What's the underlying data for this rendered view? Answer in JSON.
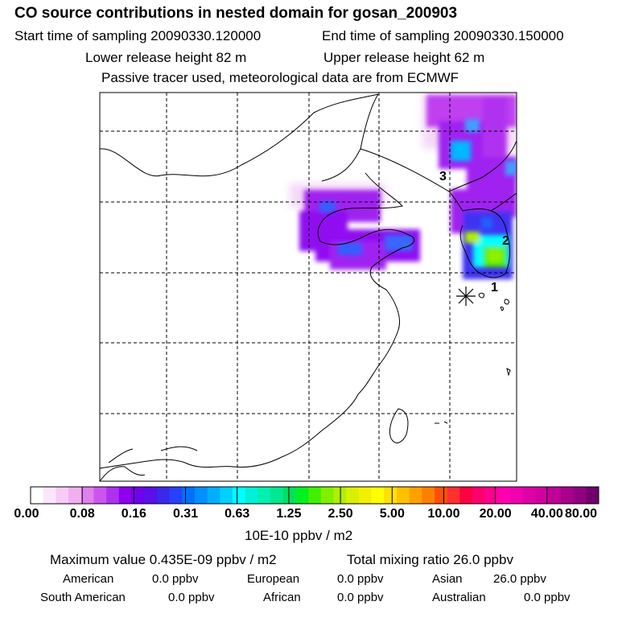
{
  "header": {
    "title": "CO  source contributions in nested domain for gosan_200903",
    "start_time": "Start time of sampling 20090330.120000",
    "end_time": "End time of sampling 20090330.150000",
    "lower_release": "Lower release height   82 m",
    "upper_release": "Upper release height   62 m",
    "tracer_note": "Passive tracer used, meteorological data are from ECMWF"
  },
  "map": {
    "site_labels": [
      "1",
      "2",
      "3"
    ]
  },
  "colorbar": {
    "ticks": [
      "0.00",
      "0.08",
      "0.16",
      "0.31",
      "0.63",
      "1.25",
      "2.50",
      "5.00",
      "10.00",
      "20.00",
      "40.00",
      "80.00"
    ],
    "colors": [
      "#ffffff",
      "#fbe6fb",
      "#f6ccf6",
      "#f0b0f0",
      "#e080f0",
      "#cc55f0",
      "#b030f0",
      "#9000ee",
      "#7000ee",
      "#5a10e8",
      "#3c28e8",
      "#2840ff",
      "#0070ff",
      "#0090ff",
      "#00b0ff",
      "#00d0ff",
      "#00ffff",
      "#00f0d8",
      "#00f0b0",
      "#00e890",
      "#00e060",
      "#00f020",
      "#40f000",
      "#80f000",
      "#b0f000",
      "#d8f000",
      "#f0f000",
      "#ffff00",
      "#ffe000",
      "#ffc000",
      "#ffa000",
      "#ff8000",
      "#ff5000",
      "#ff3030",
      "#ff0040",
      "#ff0070",
      "#ff0090",
      "#ff00b0",
      "#f000b0",
      "#e000a8",
      "#d000a0",
      "#c00098",
      "#a8008c",
      "#900080",
      "#700070"
    ],
    "unit": "10E-10 ppbv / m2"
  },
  "footer": {
    "maximum_value": "Maximum value  0.435E-09 ppbv / m2",
    "total_mixing": "Total mixing ratio      26.0 ppbv",
    "american": "American",
    "american_val": "0.0 ppbv",
    "european": "European",
    "european_val": "0.0 ppbv",
    "asian": "Asian",
    "asian_val": "26.0 ppbv",
    "south_american": "South American",
    "south_american_val": "0.0 ppbv",
    "african": "African",
    "african_val": "0.0 ppbv",
    "australian": "Australian",
    "australian_val": "0.0 ppbv"
  }
}
